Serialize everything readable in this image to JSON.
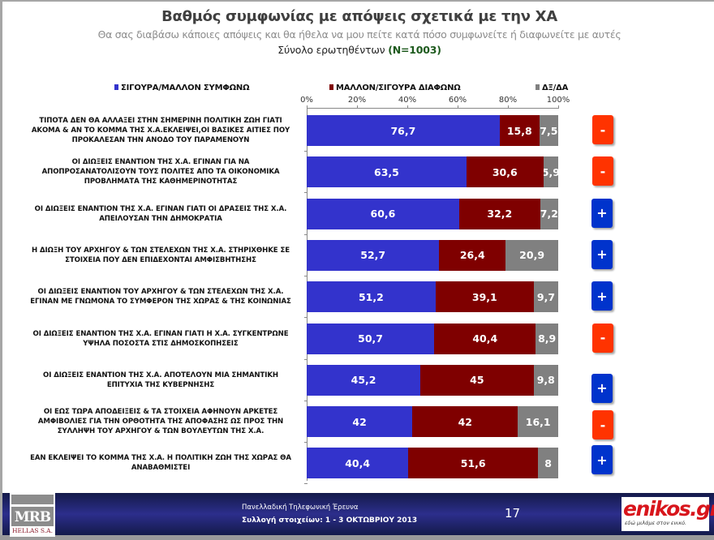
{
  "header": {
    "title": "Βαθμός συμφωνίας με απόψεις σχετικά με την ΧΑ",
    "subtitle": "Θα σας διαβάσω κάποιες απόψεις και θα ήθελα να μου πείτε κατά πόσο συμφωνείτε ή διαφωνείτε με αυτές",
    "base_label": "Σύνολο ερωτηθέντων",
    "base_n": "(N=1003)"
  },
  "colors": {
    "agree": "#3333cc",
    "disagree": "#7f0000",
    "dk": "#808080",
    "badge_plus": "#0033cc",
    "badge_minus": "#ff3300"
  },
  "chart_data": {
    "type": "bar",
    "orientation": "horizontal",
    "stacked": true,
    "title": "Βαθμός συμφωνίας με απόψεις σχετικά με την ΧΑ",
    "xlabel": "",
    "ylabel": "",
    "xlim": [
      0,
      100
    ],
    "x_ticks": [
      "0%",
      "20%",
      "40%",
      "60%",
      "80%",
      "100%"
    ],
    "legend_position": "top",
    "grid": false,
    "categories": [
      "ΤΙΠΟΤΑ ΔΕΝ ΘΑ ΑΛΛΑΞΕΙ ΣΤΗΝ ΣΗΜΕΡΙΝΗ ΠΟΛΙΤΙΚΗ ΖΩΗ ΓΙΑΤΙ ΑΚΟΜΑ & ΑΝ ΤΟ ΚΟΜΜΑ ΤΗΣ Χ.Α.ΕΚΛΕΙΨΕΙ,ΟΙ ΒΑΣΙΚΕΣ ΑΙΤΙΕΣ ΠΟΥ ΠΡΟΚΑΛΕΣΑΝ ΤΗΝ ΑΝΟΔΟ ΤΟΥ ΠΑΡΑΜΕΝΟΥΝ",
      "ΟΙ ΔΙΩΞΕΙΣ ΕΝΑΝΤΙΟΝ ΤΗΣ Χ.Α. ΕΓΙΝΑΝ ΓΙΑ ΝΑ ΑΠΟΠΡΟΣΑΝΑΤΟΛΙΣΟΥΝ ΤΟΥΣ ΠΟΛΙΤΕΣ ΑΠΟ ΤΑ ΟΙΚΟΝΟΜΙΚΑ ΠΡΟΒΛΗΜΑΤΑ ΤΗΣ ΚΑΘΗΜΕΡΙΝΟΤΗΤΑΣ",
      "ΟΙ ΔΙΩΞΕΙΣ ΕΝΑΝΤΙΟΝ ΤΗΣ Χ.Α. ΕΓΙΝΑΝ ΓΙΑΤΙ ΟΙ ΔΡΑΣΕΙΣ ΤΗΣ Χ.Α. ΑΠΕΙΛΟΥΣΑΝ ΤΗΝ ΔΗΜΟΚΡΑΤΙΑ",
      "Η ΔΙΩΞΗ ΤΟΥ ΑΡΧΗΓΟΥ & ΤΩΝ ΣΤΕΛΕΧΩΝ ΤΗΣ Χ.Α. ΣΤΗΡΙΧΘΗΚΕ ΣΕ ΣΤΟΙΧΕΙΑ ΠΟΥ ΔΕΝ ΕΠΙΔΕΧΟΝΤΑΙ ΑΜΦΙΣΒΗΤΗΣΗΣ",
      "ΟΙ ΔΙΩΞΕΙΣ ΕΝΑΝΤΙΟΝ ΤΟΥ ΑΡΧΗΓΟΥ & ΤΩΝ ΣΤΕΛΕΧΩΝ ΤΗΣ Χ.Α. ΕΓΙΝΑΝ ΜΕ ΓΝΩΜΟΝΑ ΤΟ ΣΥΜΦΕΡΟΝ ΤΗΣ ΧΩΡΑΣ & ΤΗΣ ΚΟΙΝΩΝΙΑΣ",
      "ΟΙ ΔΙΩΞΕΙΣ ΕΝΑΝΤΙΟΝ ΤΗΣ Χ.Α. ΕΓΙΝΑΝ ΓΙΑΤΙ Η Χ.Α. ΣΥΓΚΕΝΤΡΩΝΕ ΥΨΗΛΑ ΠΟΣΟΣΤΑ ΣΤΙΣ ΔΗΜΟΣΚΟΠΗΣΕΙΣ",
      "ΟΙ ΔΙΩΞΕΙΣ ΕΝΑΝΤΙΟΝ ΤΗΣ Χ.Α. ΑΠΟΤΕΛΟΥΝ ΜΙΑ ΣΗΜΑΝΤΙΚΗ ΕΠΙΤΥΧΙΑ ΤΗΣ ΚΥΒΕΡΝΗΣΗΣ",
      "ΟΙ ΕΩΣ ΤΩΡΑ ΑΠΟΔΕΙΞΕΙΣ & ΤΑ ΣΤΟΙΧΕΙΑ ΑΦΗΝΟΥΝ ΑΡΚΕΤΕΣ ΑΜΦΙΒΟΛΙΕΣ ΓΙΑ ΤΗΝ ΟΡΘΟΤΗΤΑ ΤΗΣ ΑΠΟΦΑΣΗΣ ΩΣ ΠΡΟΣ ΤΗΝ ΣΥΛΛΗΨΗ ΤΟΥ ΑΡΧΗΓΟΥ & ΤΩΝ ΒΟΥΛΕΥΤΩΝ ΤΗΣ Χ.Α.",
      "ΕΑΝ ΕΚΛΕΙΨΕΙ ΤΟ ΚΟΜΜΑ ΤΗΣ Χ.Α. Η ΠΟΛΙΤΙΚΗ ΖΩΗ ΤΗΣ ΧΩΡΑΣ ΘΑ ΑΝΑΒΑΘΜΙΣΤΕΙ"
    ],
    "category_lines": [
      [
        "ΤΙΠΟΤΑ ΔΕΝ ΘΑ ΑΛΛΑΞΕΙ ΣΤΗΝ ΣΗΜΕΡΙΝΗ ΠΟΛΙΤΙΚΗ ΖΩΗ ΓΙΑΤΙ",
        "ΑΚΟΜΑ & ΑΝ ΤΟ ΚΟΜΜΑ ΤΗΣ Χ.Α.ΕΚΛΕΙΨΕΙ,ΟΙ ΒΑΣΙΚΕΣ ΑΙΤΙΕΣ ΠΟΥ",
        "ΠΡΟΚΑΛΕΣΑΝ ΤΗΝ ΑΝΟΔΟ ΤΟΥ ΠΑΡΑΜΕΝΟΥΝ"
      ],
      [
        "ΟΙ ΔΙΩΞΕΙΣ ΕΝΑΝΤΙΟΝ ΤΗΣ Χ.Α. ΕΓΙΝΑΝ ΓΙΑ ΝΑ",
        "ΑΠΟΠΡΟΣΑΝΑΤΟΛΙΣΟΥΝ ΤΟΥΣ ΠΟΛΙΤΕΣ ΑΠΟ ΤΑ ΟΙΚΟΝΟΜΙΚΑ",
        "ΠΡΟΒΛΗΜΑΤΑ ΤΗΣ ΚΑΘΗΜΕΡΙΝΟΤΗΤΑΣ"
      ],
      [
        "ΟΙ ΔΙΩΞΕΙΣ ΕΝΑΝΤΙΟΝ ΤΗΣ Χ.Α. ΕΓΙΝΑΝ ΓΙΑΤΙ ΟΙ ΔΡΑΣΕΙΣ ΤΗΣ Χ.Α.",
        "ΑΠΕΙΛΟΥΣΑΝ ΤΗΝ ΔΗΜΟΚΡΑΤΙΑ"
      ],
      [
        "Η ΔΙΩΞΗ ΤΟΥ ΑΡΧΗΓΟΥ & ΤΩΝ ΣΤΕΛΕΧΩΝ ΤΗΣ Χ.Α. ΣΤΗΡΙΧΘΗΚΕ ΣΕ",
        "ΣΤΟΙΧΕΙΑ ΠΟΥ ΔΕΝ ΕΠΙΔΕΧΟΝΤΑΙ ΑΜΦΙΣΒΗΤΗΣΗΣ"
      ],
      [
        "ΟΙ ΔΙΩΞΕΙΣ ΕΝΑΝΤΙΟΝ ΤΟΥ ΑΡΧΗΓΟΥ & ΤΩΝ ΣΤΕΛΕΧΩΝ ΤΗΣ Χ.Α.",
        "ΕΓΙΝΑΝ ΜΕ ΓΝΩΜΟΝΑ ΤΟ ΣΥΜΦΕΡΟΝ ΤΗΣ ΧΩΡΑΣ & ΤΗΣ ΚΟΙΝΩΝΙΑΣ"
      ],
      [
        "ΟΙ ΔΙΩΞΕΙΣ ΕΝΑΝΤΙΟΝ ΤΗΣ Χ.Α. ΕΓΙΝΑΝ ΓΙΑΤΙ Η Χ.Α. ΣΥΓΚΕΝΤΡΩΝΕ",
        "ΥΨΗΛΑ ΠΟΣΟΣΤΑ ΣΤΙΣ ΔΗΜΟΣΚΟΠΗΣΕΙΣ"
      ],
      [
        "ΟΙ ΔΙΩΞΕΙΣ ΕΝΑΝΤΙΟΝ ΤΗΣ Χ.Α. ΑΠΟΤΕΛΟΥΝ ΜΙΑ ΣΗΜΑΝΤΙΚΗ",
        "ΕΠΙΤΥΧΙΑ ΤΗΣ ΚΥΒΕΡΝΗΣΗΣ"
      ],
      [
        "ΟΙ ΕΩΣ ΤΩΡΑ ΑΠΟΔΕΙΞΕΙΣ & ΤΑ ΣΤΟΙΧΕΙΑ ΑΦΗΝΟΥΝ ΑΡΚΕΤΕΣ",
        "ΑΜΦΙΒΟΛΙΕΣ ΓΙΑ ΤΗΝ ΟΡΘΟΤΗΤΑ ΤΗΣ ΑΠΟΦΑΣΗΣ ΩΣ ΠΡΟΣ ΤΗΝ",
        "ΣΥΛΛΗΨΗ ΤΟΥ ΑΡΧΗΓΟΥ & ΤΩΝ ΒΟΥΛΕΥΤΩΝ ΤΗΣ Χ.Α."
      ],
      [
        "ΕΑΝ ΕΚΛΕΙΨΕΙ ΤΟ ΚΟΜΜΑ ΤΗΣ Χ.Α. Η ΠΟΛΙΤΙΚΗ ΖΩΗ ΤΗΣ ΧΩΡΑΣ ΘΑ",
        "ΑΝΑΒΑΘΜΙΣΤΕΙ"
      ]
    ],
    "series": [
      {
        "name": "ΣΙΓΟΥΡΑ/ΜΑΛΛΟΝ ΣΥΜΦΩΝΩ",
        "color": "#3333cc",
        "values": [
          76.7,
          63.5,
          60.6,
          52.7,
          51.2,
          50.7,
          45.2,
          42,
          40.4
        ],
        "labels": [
          "76,7",
          "63,5",
          "60,6",
          "52,7",
          "51,2",
          "50,7",
          "45,2",
          "42",
          "40,4"
        ]
      },
      {
        "name": "ΜΑΛΛΟΝ/ΣΙΓΟΥΡΑ ΔΙΑΦΩΝΩ",
        "color": "#7f0000",
        "values": [
          15.8,
          30.6,
          32.2,
          26.4,
          39.1,
          40.4,
          45,
          42,
          51.6
        ],
        "labels": [
          "15,8",
          "30,6",
          "32,2",
          "26,4",
          "39,1",
          "40,4",
          "45",
          "42",
          "51,6"
        ]
      },
      {
        "name": "ΔΞ/ΔΑ",
        "color": "#808080",
        "values": [
          7.5,
          5.9,
          7.2,
          20.9,
          9.7,
          8.9,
          9.8,
          16.1,
          8
        ],
        "labels": [
          "7,5",
          "5,9",
          "7,2",
          "20,9",
          "9,7",
          "8,9",
          "9,8",
          "16,1",
          "8"
        ]
      }
    ],
    "badges": [
      "-",
      "-",
      "+",
      "+",
      "+",
      "-",
      "+",
      "-",
      "+"
    ]
  },
  "footer": {
    "survey_line": "Πανελλαδική Τηλεφωνική Έρευνα",
    "collection_line": "Συλλογή στοιχείων: 1 - 3 ΟΚΤΩΒΡΙΟΥ 2013",
    "page_number": "17",
    "mrb_logo_text": "MRB",
    "mrb_logo_sub": "HELLAS S.A.",
    "enikos_logo_e": "e",
    "enikos_logo_rest": "nikos.gr",
    "enikos_tagline": "εδώ μιλάμε στον ενικό."
  }
}
